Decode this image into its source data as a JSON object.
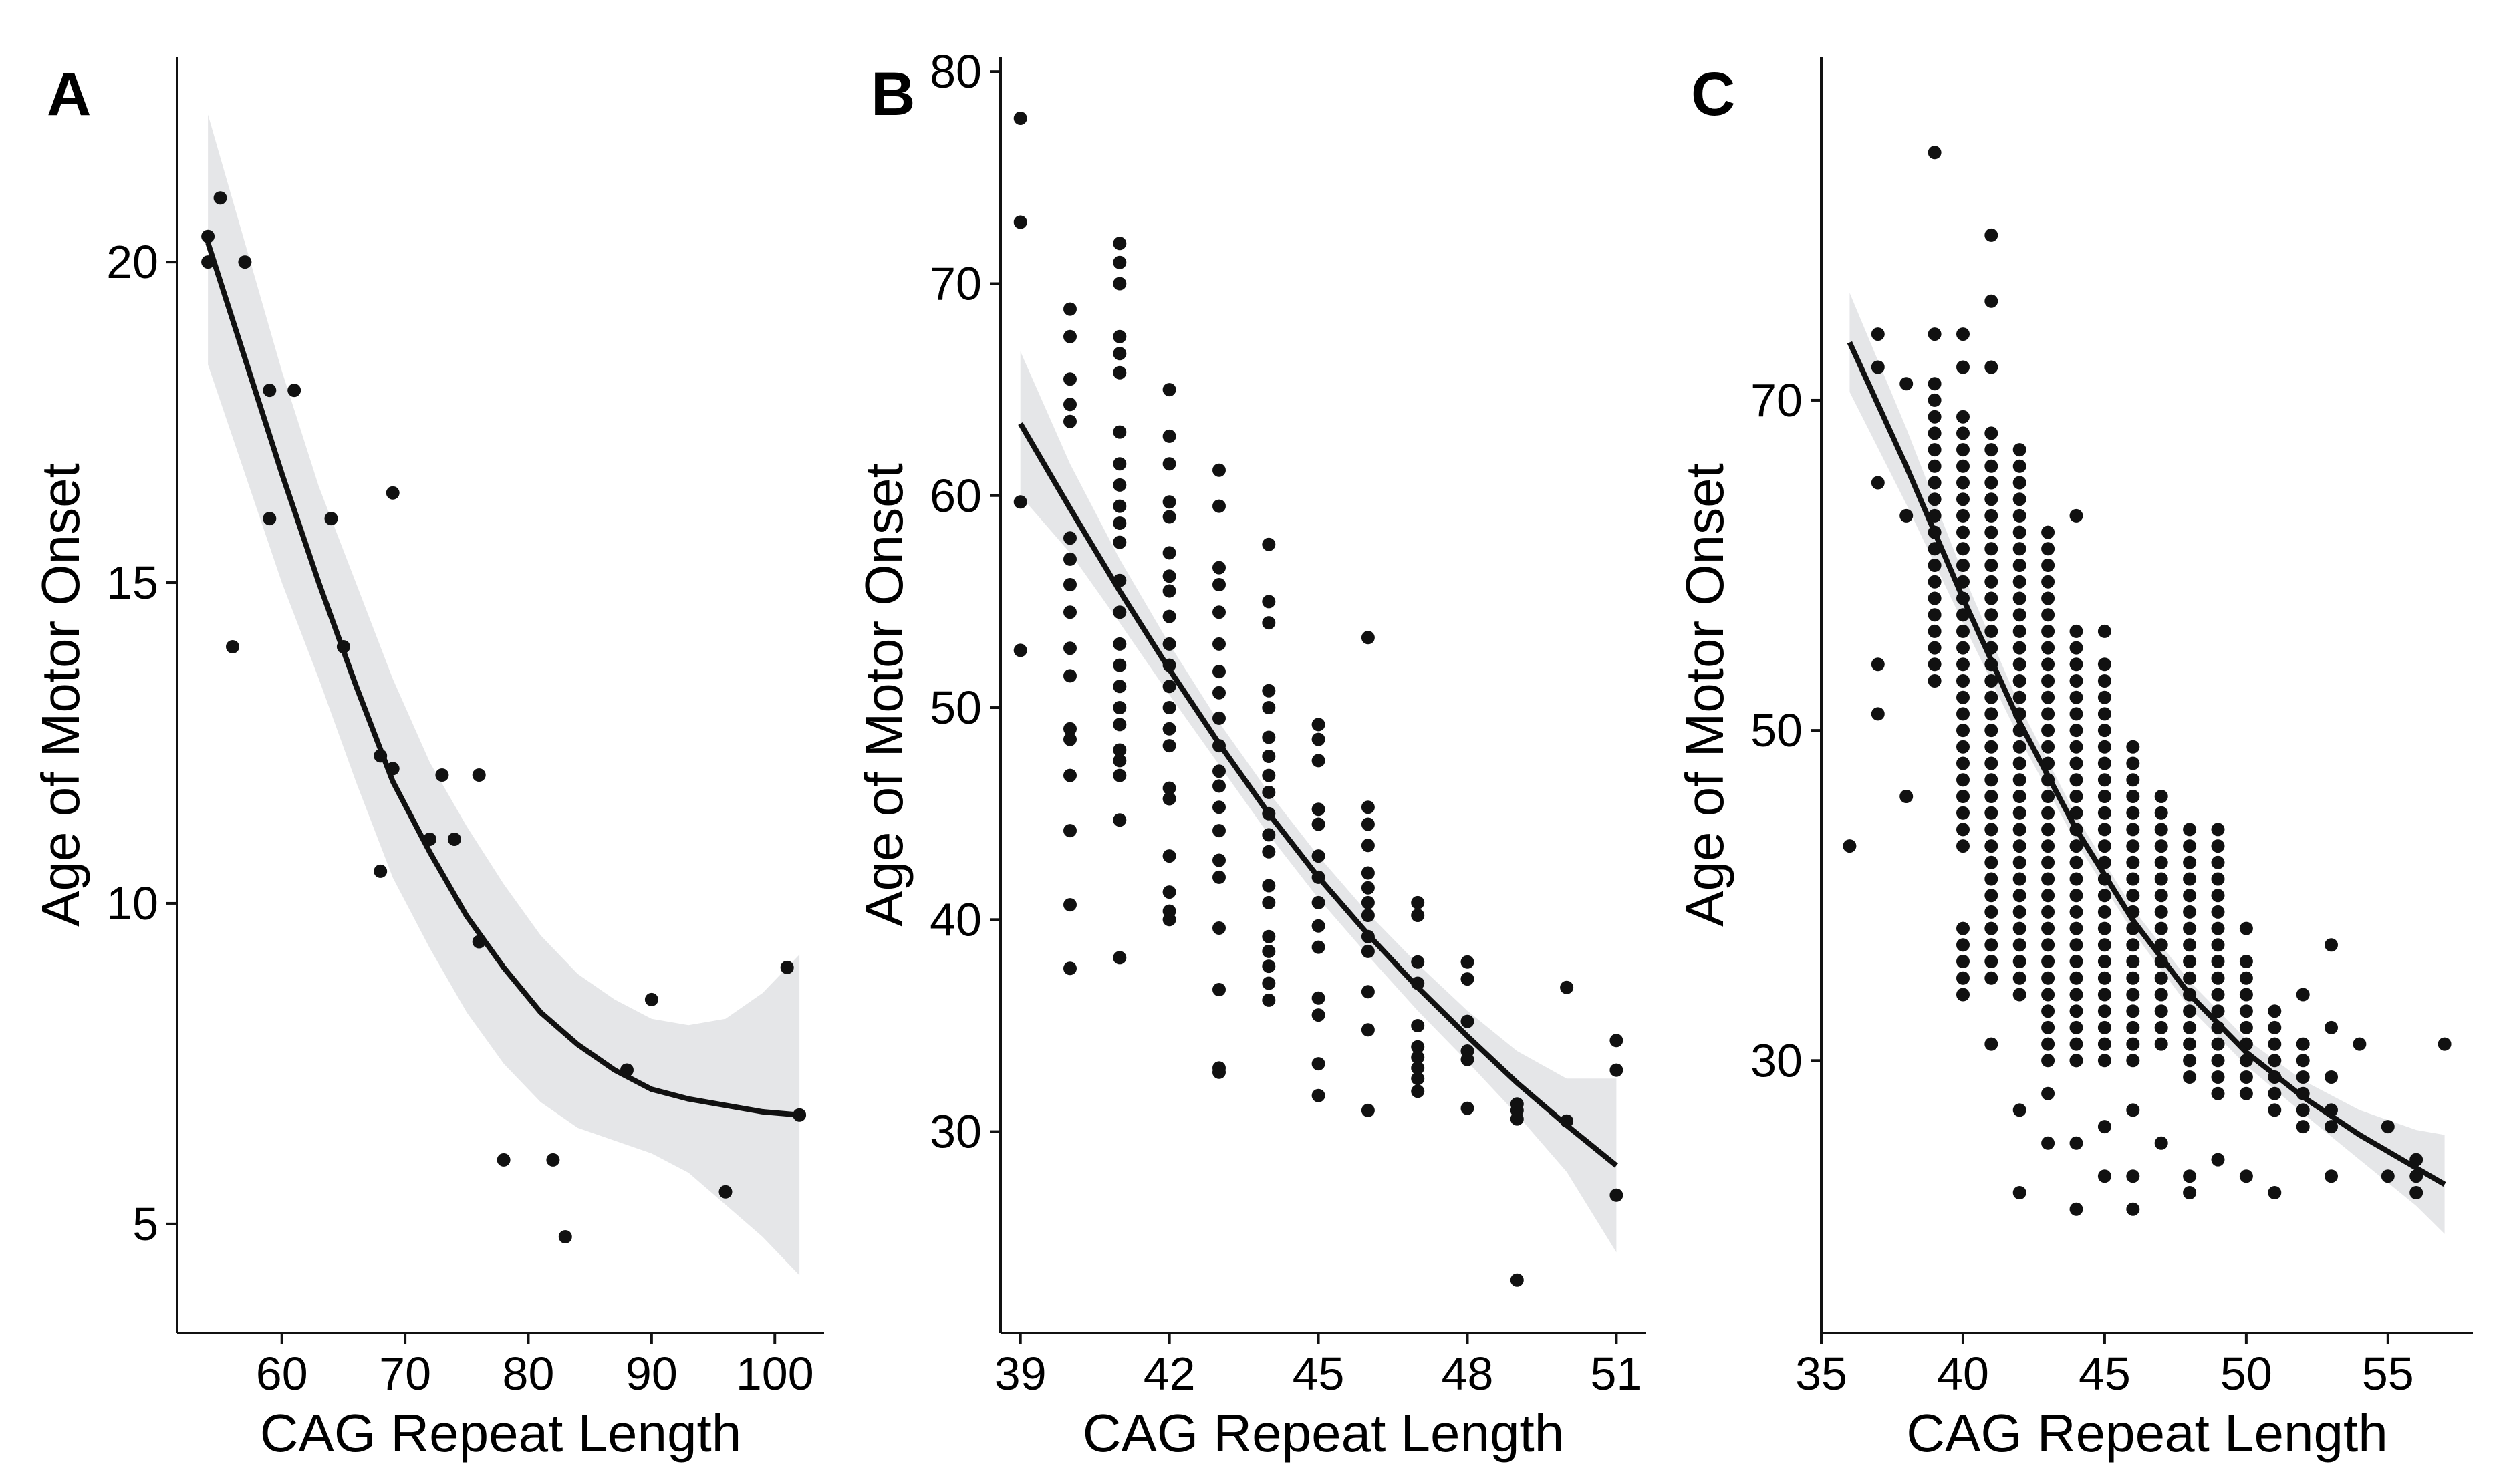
{
  "figure": {
    "panels": [
      "A",
      "B",
      "C"
    ],
    "style": {
      "point_color": "#111111",
      "line_color": "#111111",
      "ci_color": "#e5e6e8",
      "axis_color": "#111111"
    }
  },
  "chart_data": [
    {
      "panel": "A",
      "type": "scatter",
      "fit": "loess",
      "xlabel": "CAG Repeat Length",
      "ylabel": "Age of Motor Onset",
      "xlim": [
        51.5,
        104
      ],
      "ylim": [
        3.3,
        23.2
      ],
      "xticks": [
        60,
        70,
        80,
        90,
        100
      ],
      "yticks": [
        5,
        10,
        15,
        20
      ],
      "points": [
        [
          54,
          20.4
        ],
        [
          54,
          20
        ],
        [
          55,
          21
        ],
        [
          56,
          14
        ],
        [
          57,
          20
        ],
        [
          59,
          18
        ],
        [
          59,
          16
        ],
        [
          61,
          18
        ],
        [
          64,
          16
        ],
        [
          65,
          14
        ],
        [
          68,
          10.5
        ],
        [
          68,
          12.3
        ],
        [
          69,
          16.4
        ],
        [
          69,
          12.1
        ],
        [
          72,
          11
        ],
        [
          73,
          12
        ],
        [
          74,
          11
        ],
        [
          76,
          9.4
        ],
        [
          76,
          12
        ],
        [
          78,
          6
        ],
        [
          82,
          6
        ],
        [
          83,
          4.8
        ],
        [
          88,
          7.4
        ],
        [
          90,
          8.5
        ],
        [
          96,
          5.5
        ],
        [
          101,
          9
        ],
        [
          102,
          6.7
        ]
      ],
      "fit_line": {
        "x": [
          54,
          57,
          60,
          63,
          66,
          69,
          72,
          75,
          78,
          81,
          84,
          87,
          90,
          93,
          96,
          99,
          102
        ],
        "y": [
          20.3,
          18.5,
          16.7,
          15.0,
          13.4,
          11.9,
          10.8,
          9.8,
          9.0,
          8.3,
          7.8,
          7.4,
          7.1,
          6.95,
          6.85,
          6.75,
          6.7
        ]
      },
      "ci_upper": [
        22.3,
        20.3,
        18.3,
        16.5,
        15.0,
        13.5,
        12.2,
        11.2,
        10.3,
        9.5,
        8.9,
        8.5,
        8.2,
        8.1,
        8.2,
        8.6,
        9.2
      ],
      "ci_lower": [
        18.4,
        16.7,
        15.0,
        13.5,
        11.9,
        10.4,
        9.3,
        8.3,
        7.5,
        6.9,
        6.5,
        6.3,
        6.1,
        5.8,
        5.3,
        4.8,
        4.2
      ]
    },
    {
      "panel": "B",
      "type": "scatter",
      "fit": "loess",
      "xlabel": "CAG Repeat Length",
      "ylabel": "Age of Motor Onset",
      "xlim": [
        38.6,
        51.6
      ],
      "ylim": [
        20.5,
        80.7
      ],
      "xticks": [
        39,
        42,
        45,
        48,
        51
      ],
      "yticks": [
        30,
        40,
        50,
        60,
        70,
        80
      ],
      "points": [
        [
          39,
          77.8
        ],
        [
          39,
          72.9
        ],
        [
          39,
          59.7
        ],
        [
          39,
          52.7
        ],
        [
          40,
          68.8
        ],
        [
          40,
          67.5
        ],
        [
          40,
          65.5
        ],
        [
          40,
          64.3
        ],
        [
          40,
          63.5
        ],
        [
          40,
          58.0
        ],
        [
          40,
          57.0
        ],
        [
          40,
          55.8
        ],
        [
          40,
          54.5
        ],
        [
          40,
          52.8
        ],
        [
          40,
          51.5
        ],
        [
          40,
          49.0
        ],
        [
          40,
          48.5
        ],
        [
          40,
          46.8
        ],
        [
          40,
          44.2
        ],
        [
          40,
          40.7
        ],
        [
          40,
          37.7
        ],
        [
          41,
          71.9
        ],
        [
          41,
          71.0
        ],
        [
          41,
          70.0
        ],
        [
          41,
          67.5
        ],
        [
          41,
          66.7
        ],
        [
          41,
          65.8
        ],
        [
          41,
          63.0
        ],
        [
          41,
          61.5
        ],
        [
          41,
          60.5
        ],
        [
          41,
          59.5
        ],
        [
          41,
          58.7
        ],
        [
          41,
          57.8
        ],
        [
          41,
          56.0
        ],
        [
          41,
          54.5
        ],
        [
          41,
          53.0
        ],
        [
          41,
          52.0
        ],
        [
          41,
          51.0
        ],
        [
          41,
          50.0
        ],
        [
          41,
          49.2
        ],
        [
          41,
          48.0
        ],
        [
          41,
          47.5
        ],
        [
          41,
          46.8
        ],
        [
          41,
          44.7
        ],
        [
          41,
          38.2
        ],
        [
          42,
          65.0
        ],
        [
          42,
          62.8
        ],
        [
          42,
          61.5
        ],
        [
          42,
          59.7
        ],
        [
          42,
          59.0
        ],
        [
          42,
          57.3
        ],
        [
          42,
          56.2
        ],
        [
          42,
          55.5
        ],
        [
          42,
          54.3
        ],
        [
          42,
          53.0
        ],
        [
          42,
          52.0
        ],
        [
          42,
          51.0
        ],
        [
          42,
          50.0
        ],
        [
          42,
          49.0
        ],
        [
          42,
          48.2
        ],
        [
          42,
          46.2
        ],
        [
          42,
          45.7
        ],
        [
          42,
          43.0
        ],
        [
          42,
          41.3
        ],
        [
          42,
          40.4
        ],
        [
          42,
          40.0
        ],
        [
          43,
          61.2
        ],
        [
          43,
          59.5
        ],
        [
          43,
          56.6
        ],
        [
          43,
          55.8
        ],
        [
          43,
          54.5
        ],
        [
          43,
          53.0
        ],
        [
          43,
          51.7
        ],
        [
          43,
          50.7
        ],
        [
          43,
          49.5
        ],
        [
          43,
          48.2
        ],
        [
          43,
          47.0
        ],
        [
          43,
          46.3
        ],
        [
          43,
          45.3
        ],
        [
          43,
          44.2
        ],
        [
          43,
          42.8
        ],
        [
          43,
          42.0
        ],
        [
          43,
          39.6
        ],
        [
          43,
          36.7
        ],
        [
          43,
          33.0
        ],
        [
          43,
          32.8
        ],
        [
          44,
          57.7
        ],
        [
          44,
          55.0
        ],
        [
          44,
          54.0
        ],
        [
          44,
          50.8
        ],
        [
          44,
          50.0
        ],
        [
          44,
          48.6
        ],
        [
          44,
          47.7
        ],
        [
          44,
          46.8
        ],
        [
          44,
          46.0
        ],
        [
          44,
          45.0
        ],
        [
          44,
          44.0
        ],
        [
          44,
          43.2
        ],
        [
          44,
          41.6
        ],
        [
          44,
          40.8
        ],
        [
          44,
          39.2
        ],
        [
          44,
          38.5
        ],
        [
          44,
          37.8
        ],
        [
          44,
          37.0
        ],
        [
          44,
          36.2
        ],
        [
          45,
          49.2
        ],
        [
          45,
          48.5
        ],
        [
          45,
          47.5
        ],
        [
          45,
          45.2
        ],
        [
          45,
          44.5
        ],
        [
          45,
          43.0
        ],
        [
          45,
          42.0
        ],
        [
          45,
          40.8
        ],
        [
          45,
          39.7
        ],
        [
          45,
          38.7
        ],
        [
          45,
          36.3
        ],
        [
          45,
          35.5
        ],
        [
          45,
          33.2
        ],
        [
          45,
          31.7
        ],
        [
          46,
          53.3
        ],
        [
          46,
          45.3
        ],
        [
          46,
          44.5
        ],
        [
          46,
          43.5
        ],
        [
          46,
          42.2
        ],
        [
          46,
          41.5
        ],
        [
          46,
          40.8
        ],
        [
          46,
          40.2
        ],
        [
          46,
          39.2
        ],
        [
          46,
          38.5
        ],
        [
          46,
          36.6
        ],
        [
          46,
          34.8
        ],
        [
          46,
          31.0
        ],
        [
          47,
          40.8
        ],
        [
          47,
          40.2
        ],
        [
          47,
          38.0
        ],
        [
          47,
          37.0
        ],
        [
          47,
          35.0
        ],
        [
          47,
          34.0
        ],
        [
          47,
          33.5
        ],
        [
          47,
          33.0
        ],
        [
          47,
          32.5
        ],
        [
          47,
          31.9
        ],
        [
          48,
          38.0
        ],
        [
          48,
          37.2
        ],
        [
          48,
          35.2
        ],
        [
          48,
          33.8
        ],
        [
          48,
          33.4
        ],
        [
          48,
          31.1
        ],
        [
          49,
          31.3
        ],
        [
          49,
          31.0
        ],
        [
          49,
          30.6
        ],
        [
          49,
          23.0
        ],
        [
          50,
          36.8
        ],
        [
          50,
          30.5
        ],
        [
          51,
          34.3
        ],
        [
          51,
          32.9
        ],
        [
          51,
          27.0
        ]
      ],
      "fit_line": {
        "x": [
          39,
          40,
          41,
          42,
          43,
          44,
          45,
          46,
          47,
          48,
          49,
          50,
          51
        ],
        "y": [
          63.4,
          59.4,
          55.5,
          51.8,
          48.3,
          45.0,
          42.0,
          39.3,
          36.8,
          34.5,
          32.3,
          30.3,
          28.4
        ]
      },
      "ci_upper": [
        66.8,
        61.5,
        57.0,
        53.0,
        49.3,
        46.0,
        43.0,
        40.3,
        37.9,
        35.7,
        33.8,
        32.5,
        32.5
      ],
      "ci_lower": [
        60.0,
        57.3,
        54.0,
        50.6,
        47.3,
        44.0,
        41.0,
        38.3,
        35.7,
        33.3,
        30.8,
        28.1,
        24.3
      ]
    },
    {
      "panel": "C",
      "type": "scatter",
      "fit": "loess",
      "xlabel": "CAG Repeat Length",
      "ylabel": "Age of Motor Onset",
      "xlim": [
        35,
        58
      ],
      "ylim": [
        13.5,
        90.8
      ],
      "xticks": [
        35,
        40,
        45,
        50,
        55
      ],
      "yticks": [
        30,
        50,
        70
      ],
      "column_points": [
        {
          "x": 36,
          "y": [
            43
          ]
        },
        {
          "x": 37,
          "y": [
            74,
            72,
            65,
            54,
            51
          ]
        },
        {
          "x": 38,
          "y": [
            71,
            63,
            46
          ]
        },
        {
          "x": 39,
          "y": [
            85,
            74
          ]
        },
        {
          "x": 40,
          "y": [
            74,
            72
          ]
        },
        {
          "x": 41,
          "y": [
            80,
            76,
            72,
            31
          ]
        },
        {
          "x": 42,
          "y": [
            27,
            22
          ]
        },
        {
          "x": 43,
          "y": [
            62,
            28,
            25
          ]
        },
        {
          "x": 44,
          "y": [
            63,
            30,
            25,
            21
          ]
        },
        {
          "x": 45,
          "y": [
            26,
            23,
            56
          ]
        },
        {
          "x": 46,
          "y": [
            49,
            27,
            23,
            21
          ]
        },
        {
          "x": 47,
          "y": [
            25
          ]
        },
        {
          "x": 48,
          "y": [
            23,
            22
          ]
        },
        {
          "x": 49,
          "y": [
            24
          ]
        },
        {
          "x": 50,
          "y": [
            38,
            23
          ]
        },
        {
          "x": 51,
          "y": [
            22
          ]
        },
        {
          "x": 52,
          "y": [
            34,
            26
          ]
        },
        {
          "x": 53,
          "y": [
            37,
            32,
            29,
            27,
            26,
            23
          ]
        },
        {
          "x": 54,
          "y": [
            31
          ]
        },
        {
          "x": 55,
          "y": [
            26,
            23
          ]
        },
        {
          "x": 56,
          "y": [
            24,
            23,
            22
          ]
        },
        {
          "x": 57,
          "y": [
            31
          ]
        }
      ],
      "column_ranges": [
        {
          "x": 39,
          "from": 53,
          "to": 71
        },
        {
          "x": 40,
          "from": 43,
          "to": 69
        },
        {
          "x": 40,
          "from": 34,
          "to": 38
        },
        {
          "x": 41,
          "from": 35,
          "to": 68
        },
        {
          "x": 42,
          "from": 34,
          "to": 67
        },
        {
          "x": 43,
          "from": 30,
          "to": 61
        },
        {
          "x": 44,
          "from": 30,
          "to": 56
        },
        {
          "x": 45,
          "from": 30,
          "to": 54
        },
        {
          "x": 46,
          "from": 30,
          "to": 48
        },
        {
          "x": 47,
          "from": 31,
          "to": 46
        },
        {
          "x": 48,
          "from": 29,
          "to": 44
        },
        {
          "x": 49,
          "from": 28,
          "to": 44
        },
        {
          "x": 50,
          "from": 28,
          "to": 36
        },
        {
          "x": 51,
          "from": 27,
          "to": 33
        },
        {
          "x": 52,
          "from": 27,
          "to": 31
        }
      ],
      "fit_line": {
        "x": [
          36,
          38,
          40,
          42,
          44,
          46,
          48,
          50,
          52,
          54,
          56,
          57
        ],
        "y": [
          73.5,
          66.0,
          58.0,
          50.5,
          44.0,
          38.5,
          34.0,
          30.5,
          27.8,
          25.5,
          23.5,
          22.5
        ]
      },
      "ci_upper": [
        76.5,
        68.3,
        59.5,
        51.5,
        44.8,
        39.2,
        34.8,
        31.3,
        28.8,
        27.0,
        25.8,
        25.5
      ],
      "ci_lower": [
        70.5,
        63.7,
        56.5,
        49.5,
        43.2,
        37.8,
        33.2,
        29.7,
        26.8,
        24.0,
        21.2,
        19.5
      ]
    }
  ]
}
